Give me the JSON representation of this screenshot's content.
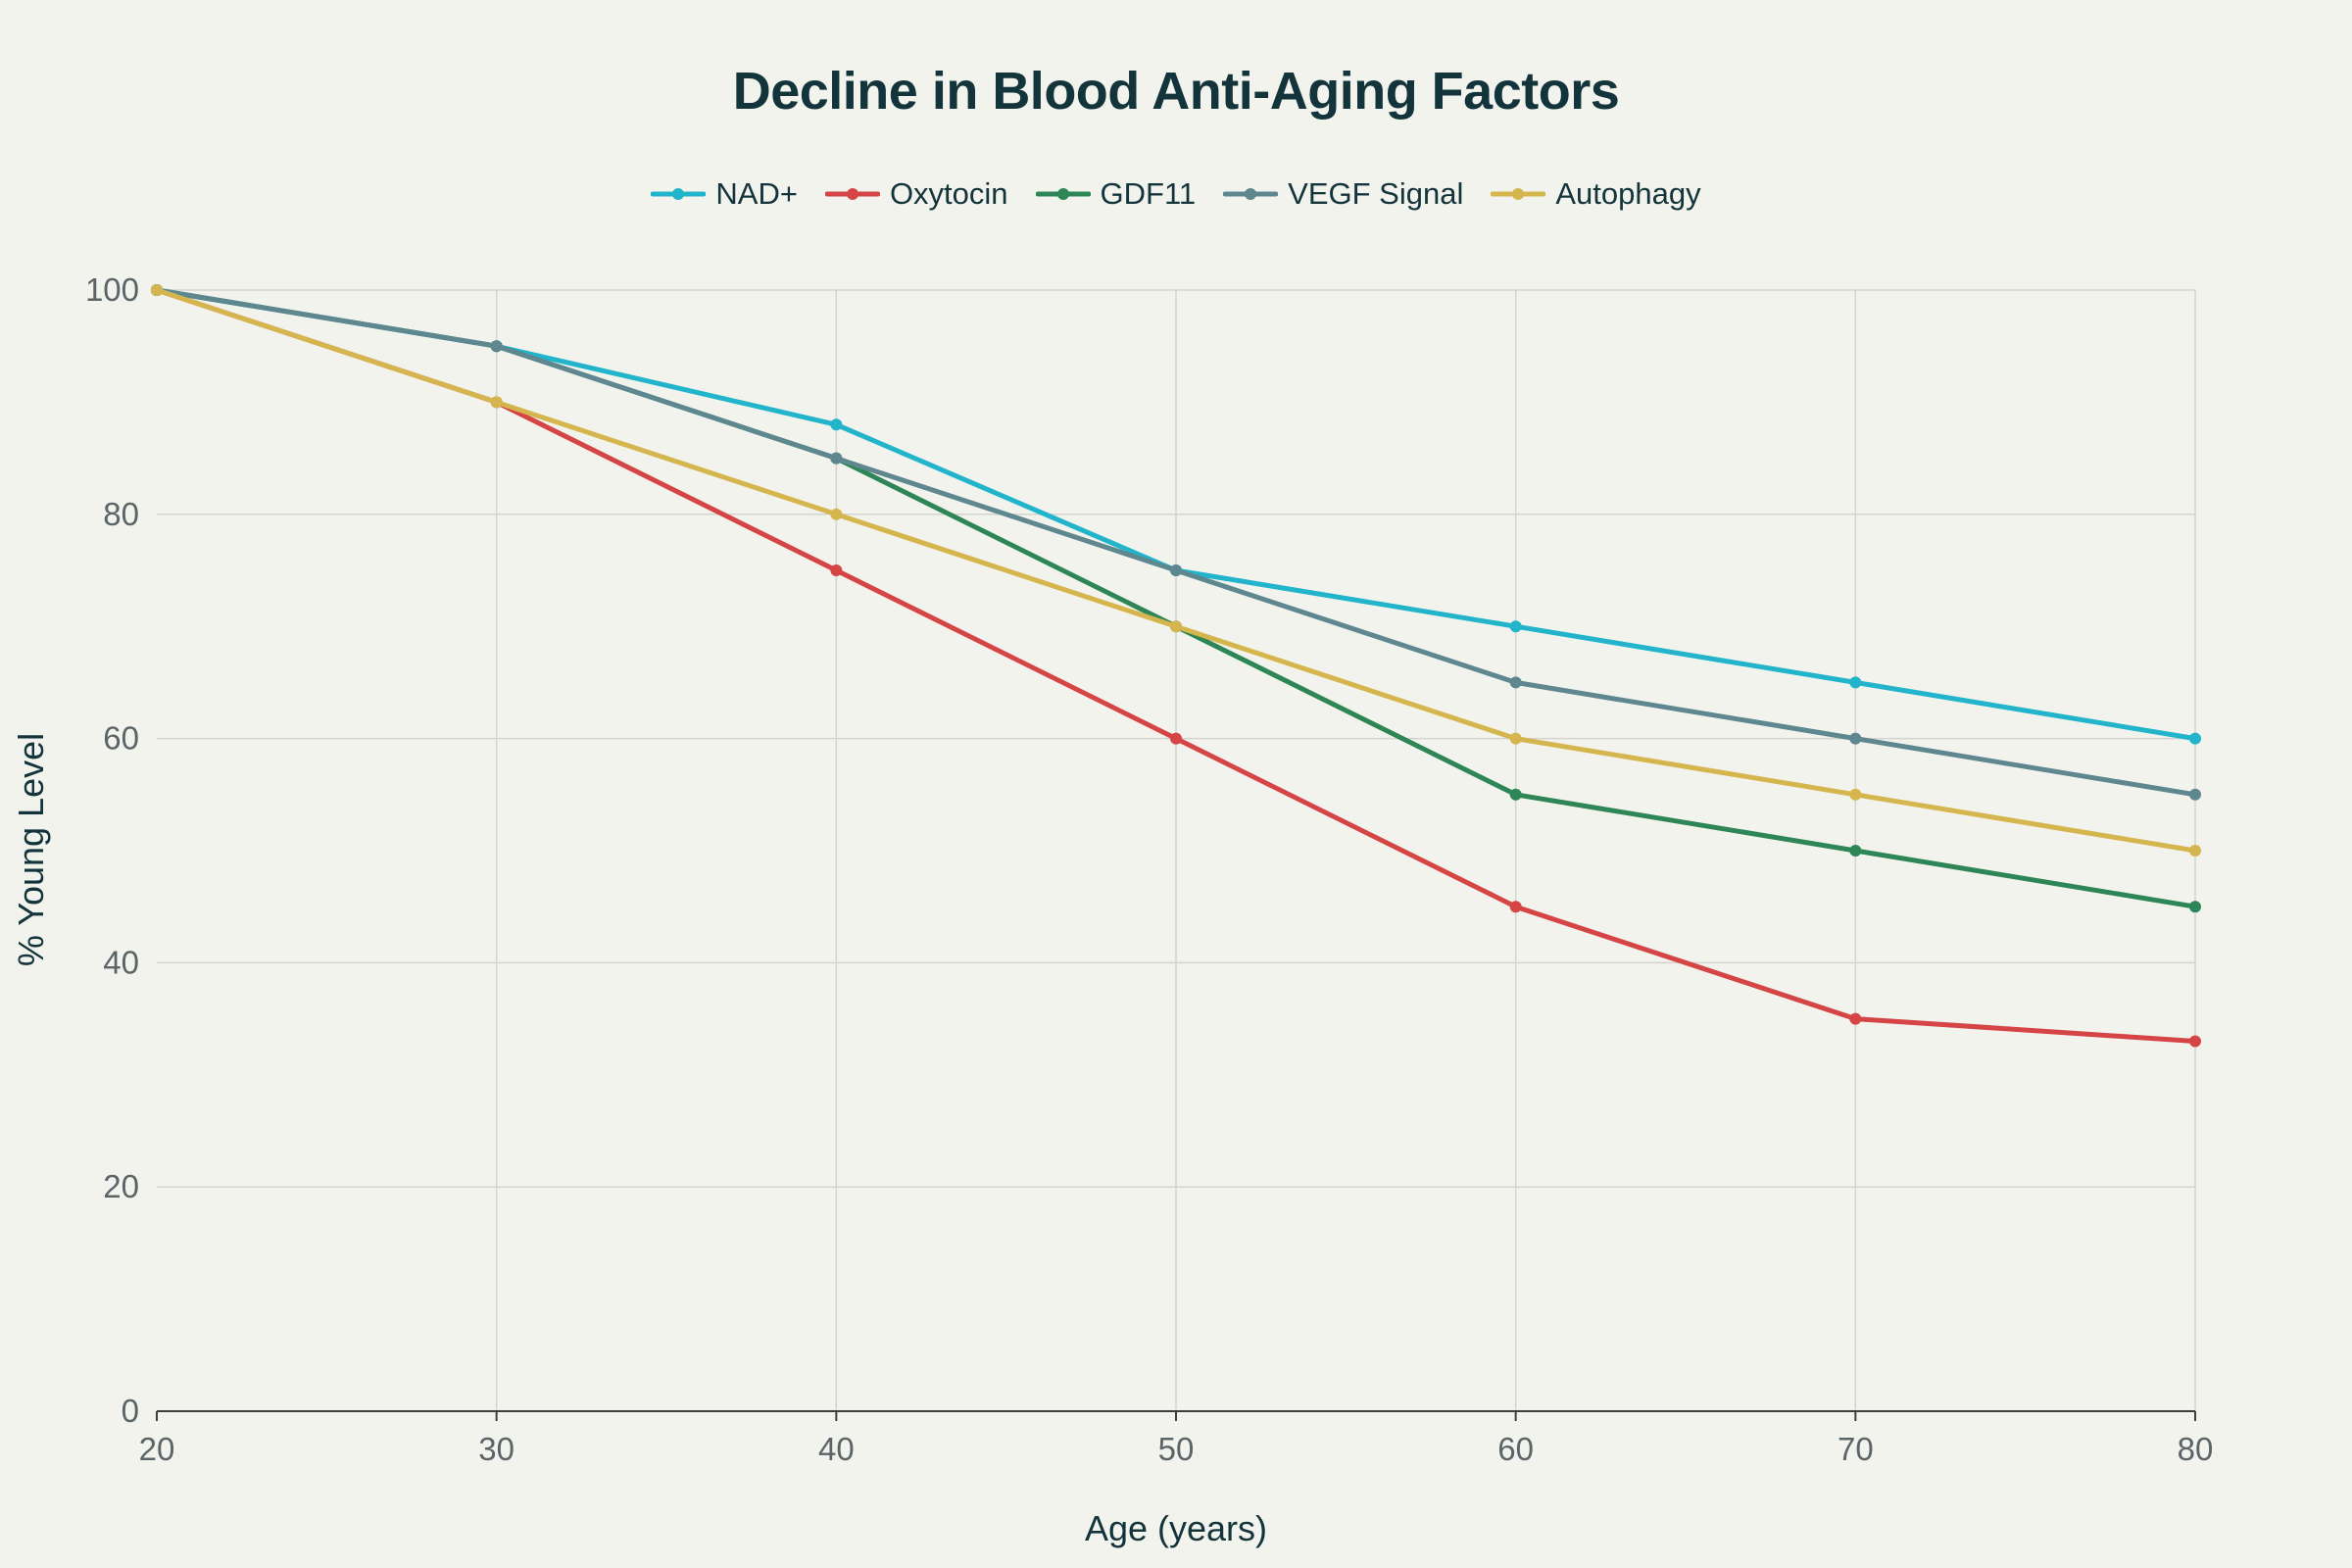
{
  "chart_data": {
    "type": "line",
    "title": "Decline in Blood Anti-Aging Factors",
    "xlabel": "Age (years)",
    "ylabel": "% Young Level",
    "x": [
      20,
      30,
      40,
      50,
      60,
      70,
      80
    ],
    "xlim": [
      20,
      80
    ],
    "ylim": [
      0,
      100
    ],
    "xticks": [
      20,
      30,
      40,
      50,
      60,
      70,
      80
    ],
    "yticks": [
      0,
      20,
      40,
      60,
      80,
      100
    ],
    "grid": true,
    "legend_position": "top-center",
    "series": [
      {
        "name": "NAD+",
        "color": "#21b4cb",
        "values": [
          100,
          95,
          88,
          75,
          70,
          65,
          60
        ]
      },
      {
        "name": "Oxytocin",
        "color": "#d54545",
        "values": [
          100,
          90,
          75,
          60,
          45,
          35,
          33
        ]
      },
      {
        "name": "GDF11",
        "color": "#2e8555",
        "values": [
          100,
          95,
          85,
          70,
          55,
          50,
          45
        ]
      },
      {
        "name": "VEGF Signal",
        "color": "#5e8790",
        "values": [
          100,
          95,
          85,
          75,
          65,
          60,
          55
        ]
      },
      {
        "name": "Autophagy",
        "color": "#d5b54d",
        "values": [
          100,
          90,
          80,
          70,
          60,
          55,
          50
        ]
      }
    ]
  }
}
